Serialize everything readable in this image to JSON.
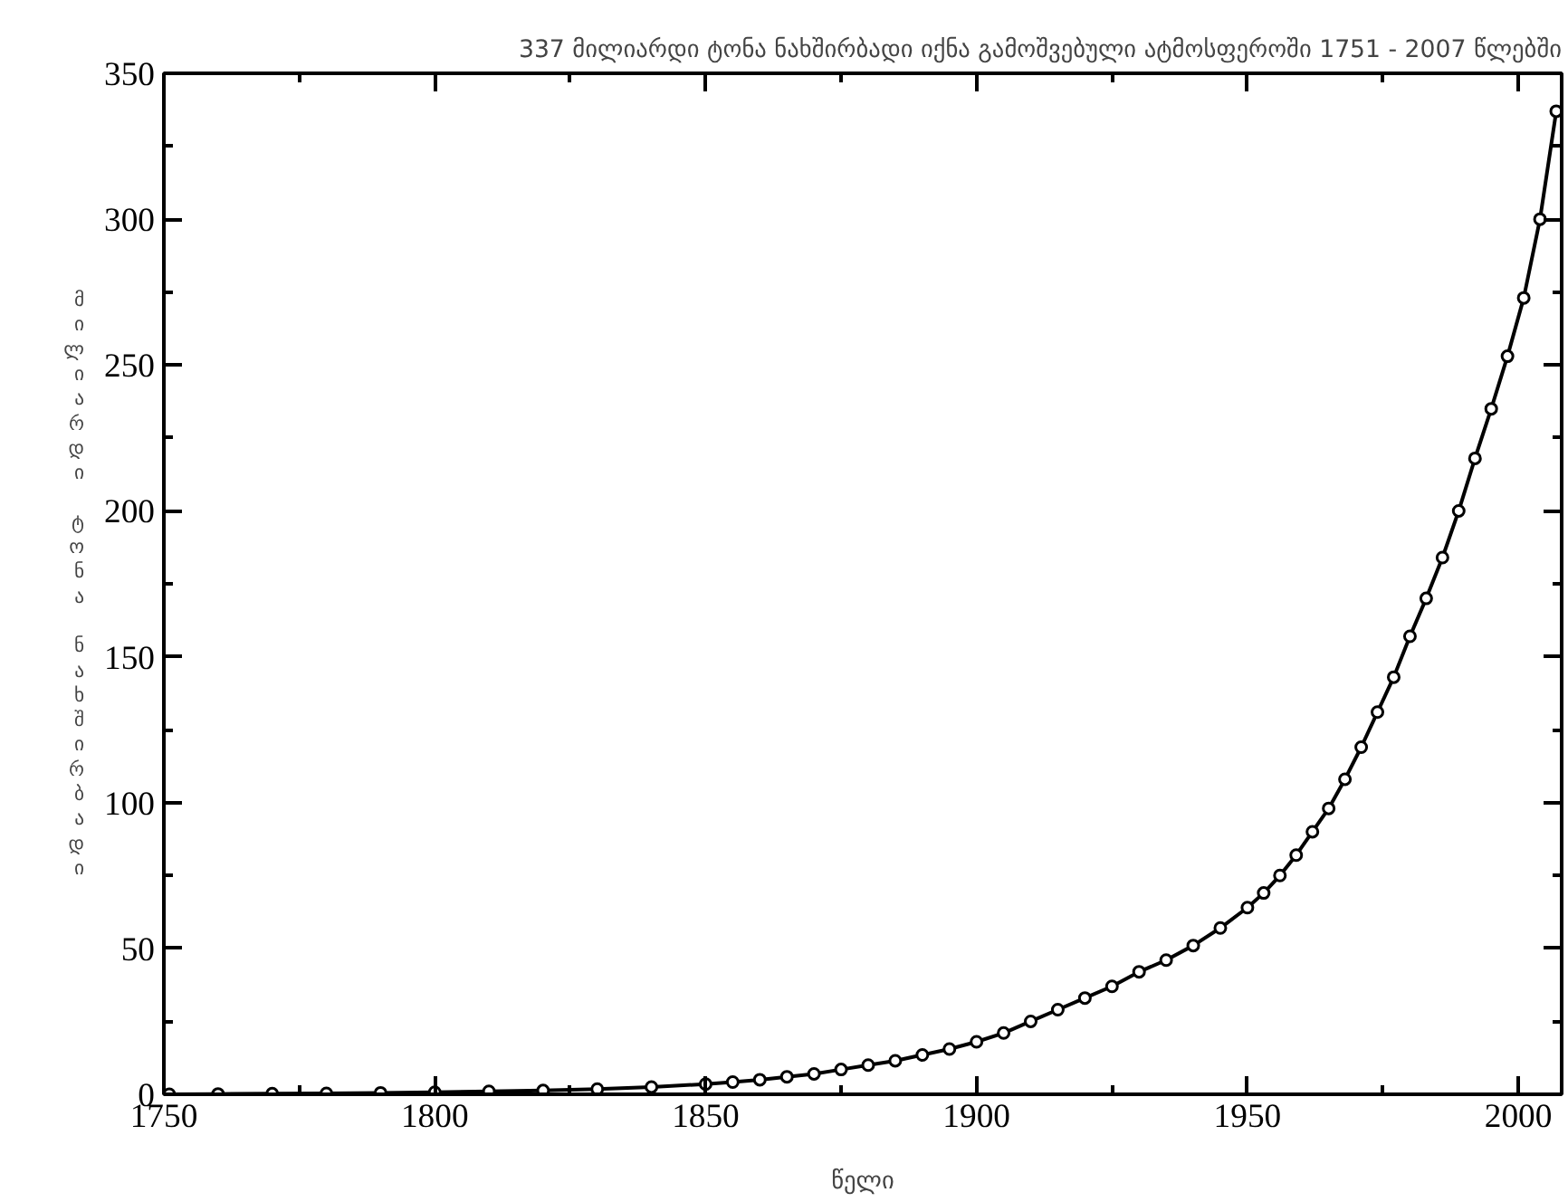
{
  "chart_data": {
    "type": "line",
    "title": "337 მილიარდი ტონა ნახშირბადი იქნა გამოშვებული ატმოსფეროში 1751 - 2007 წლებში",
    "xlabel": "წელი",
    "ylabel": "მილიარდი ტონა ნახშირბადი",
    "xlim": [
      1750,
      2008
    ],
    "xticks": [
      1750,
      1800,
      1850,
      1900,
      1950,
      2000
    ],
    "ylim": [
      0,
      350
    ],
    "yticks": [
      0,
      50,
      100,
      150,
      200,
      250,
      300,
      350
    ],
    "grid": false,
    "marker": "circle",
    "line_style": "solid",
    "series": [
      {
        "color": "#000000",
        "x": [
          1751,
          1760,
          1770,
          1780,
          1790,
          1800,
          1810,
          1820,
          1830,
          1840,
          1850,
          1855,
          1860,
          1865,
          1870,
          1875,
          1880,
          1885,
          1890,
          1895,
          1900,
          1905,
          1910,
          1915,
          1920,
          1925,
          1930,
          1935,
          1940,
          1945,
          1950,
          1953,
          1956,
          1959,
          1962,
          1965,
          1968,
          1971,
          1974,
          1977,
          1980,
          1983,
          1986,
          1989,
          1992,
          1995,
          1998,
          2001,
          2004,
          2007
        ],
        "values": [
          0,
          0.1,
          0.2,
          0.3,
          0.5,
          0.7,
          1,
          1.3,
          1.8,
          2.5,
          3.5,
          4.2,
          5,
          6,
          7,
          8.5,
          10,
          11.5,
          13.5,
          15.5,
          18,
          21,
          25,
          29,
          33,
          37,
          42,
          46,
          51,
          57,
          64,
          69,
          75,
          82,
          90,
          98,
          108,
          119,
          131,
          143,
          157,
          170,
          184,
          200,
          218,
          235,
          253,
          273,
          300,
          337
        ]
      }
    ]
  }
}
